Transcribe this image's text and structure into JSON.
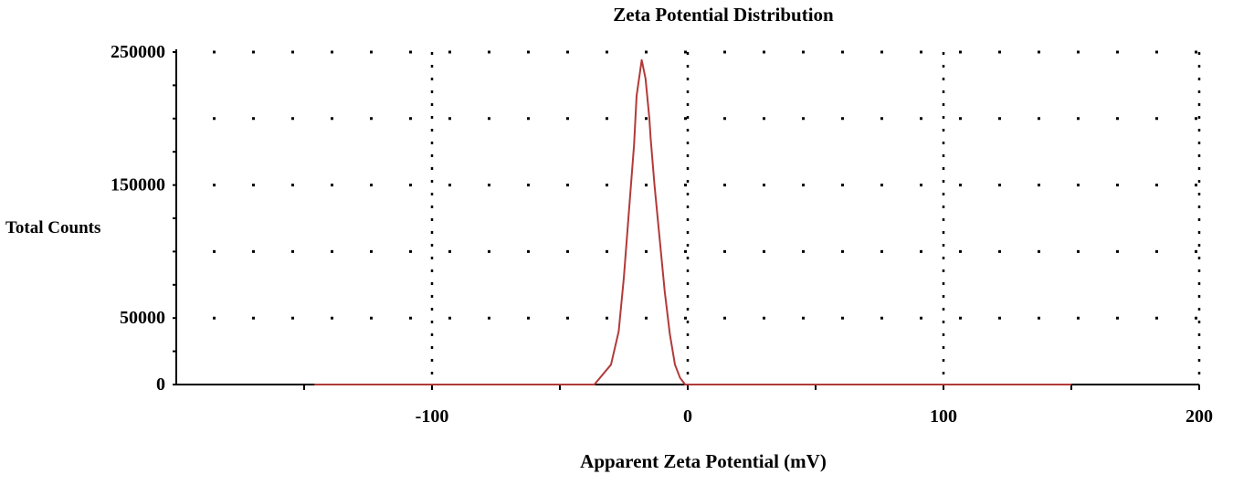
{
  "chart_data": {
    "type": "line",
    "title": "Zeta Potential Distribution",
    "xlabel": "Apparent Zeta Potential (mV)",
    "ylabel": "Total Counts",
    "xlim": [
      -200,
      200
    ],
    "ylim": [
      0,
      250000
    ],
    "x_ticks": [
      -100,
      0,
      100,
      200
    ],
    "x_tick_labels": [
      "-100",
      "0",
      "100",
      "200"
    ],
    "y_ticks": [
      0,
      50000,
      150000,
      250000
    ],
    "y_tick_labels": [
      "0",
      "50000",
      "150000",
      "250000"
    ],
    "x_grid_values": [
      -100,
      0,
      100,
      200
    ],
    "y_grid_values": [
      50000,
      100000,
      150000,
      200000,
      250000
    ],
    "x_minor_ticks": [
      -150,
      -100,
      -50,
      0,
      50,
      100,
      150,
      200
    ],
    "y_minor_ticks": [
      25000,
      50000,
      75000,
      100000,
      125000,
      150000,
      175000,
      200000,
      225000,
      250000
    ],
    "grid": true,
    "grid_style": "dotted",
    "series": [
      {
        "color": "#b23a3a",
        "x": [
          -146,
          -36.5,
          -30,
          -27,
          -25,
          -23,
          -21,
          -20,
          -18,
          -16.5,
          -15,
          -14.5,
          -13,
          -11,
          -9,
          -7,
          -5,
          -3,
          -1,
          150
        ],
        "y": [
          0,
          0,
          15000,
          40000,
          80000,
          130000,
          180000,
          217000,
          244000,
          230000,
          200000,
          185000,
          150000,
          110000,
          70000,
          38000,
          15000,
          5000,
          0,
          0
        ]
      }
    ]
  }
}
